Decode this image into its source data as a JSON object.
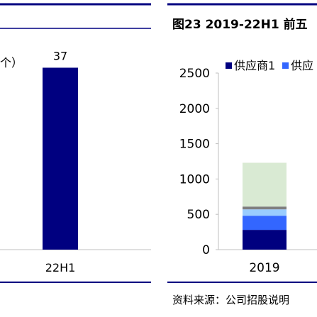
{
  "left_panel": {
    "unit_fragment": "个）"
  },
  "right_panel": {
    "title": "图23 2019-22H1 前五",
    "source": "资料来源：公司招股说明"
  },
  "chart_data": [
    {
      "type": "bar",
      "categories": [
        "22H1"
      ],
      "values": [
        37
      ],
      "data_labels": [
        "37"
      ],
      "ylim": [
        0,
        45
      ],
      "colors": {
        "bar": "#000080"
      }
    },
    {
      "type": "bar",
      "stacked": true,
      "categories": [
        "2019"
      ],
      "series": [
        {
          "name": "供应商1",
          "values": [
            280
          ],
          "color": "#00007f"
        },
        {
          "name": "供应",
          "values": [
            200
          ],
          "color": "#3366ff"
        },
        {
          "name": "",
          "values": [
            90
          ],
          "color": "#99ccff"
        },
        {
          "name": "",
          "values": [
            40
          ],
          "color": "#7f7f7f"
        },
        {
          "name": "",
          "values": [
            620
          ],
          "color": "#d9ead3"
        }
      ],
      "yticks": [
        0,
        500,
        1000,
        1500,
        2000,
        2500
      ],
      "ylim": [
        0,
        2500
      ],
      "legend_position": "top"
    }
  ]
}
